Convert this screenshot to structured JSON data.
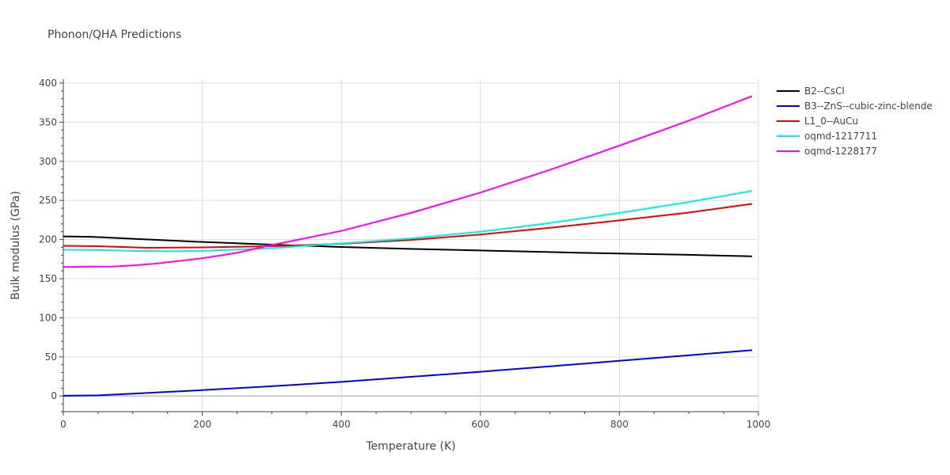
{
  "chart_data": {
    "type": "line",
    "title": "Phonon/QHA Predictions",
    "xlabel": "Temperature (K)",
    "ylabel": "Bulk modulus (GPa)",
    "xlim": [
      0,
      1000
    ],
    "ylim": [
      -20,
      405
    ],
    "x_ticks": [
      0,
      200,
      400,
      600,
      800,
      1000
    ],
    "y_ticks": [
      0,
      50,
      100,
      150,
      200,
      250,
      300,
      350,
      400
    ],
    "grid": true,
    "legend_position": "right",
    "series": [
      {
        "name": "B2--CsCl",
        "color": "#000000",
        "x": [
          0,
          40,
          100,
          200,
          300,
          400,
          500,
          600,
          700,
          740,
          800,
          900,
          990
        ],
        "y": [
          204,
          203.5,
          201,
          197,
          193.5,
          190.5,
          188,
          186,
          184,
          183.2,
          182.2,
          180.5,
          178.6
        ]
      },
      {
        "name": "B3--ZnS--cubic-zinc-blende",
        "color": "#0000ee",
        "x": [
          0,
          50,
          100,
          200,
          300,
          400,
          500,
          600,
          700,
          800,
          900,
          990
        ],
        "y": [
          0.3,
          0.8,
          3,
          7.5,
          12.5,
          18,
          24.5,
          31,
          38,
          45,
          52,
          58.5
        ]
      },
      {
        "name": "L1_0--AuCu",
        "color": "#ee0000",
        "x": [
          0,
          50,
          120,
          200,
          300,
          400,
          500,
          600,
          700,
          800,
          900,
          990
        ],
        "y": [
          192,
          191.5,
          189.5,
          190,
          191.5,
          194.5,
          199.5,
          206.5,
          215,
          224.5,
          234.5,
          245.5
        ]
      },
      {
        "name": "oqmd-1217711",
        "color": "#00eeee",
        "x": [
          0,
          50,
          100,
          150,
          200,
          300,
          400,
          500,
          600,
          700,
          800,
          900,
          990
        ],
        "y": [
          187,
          186.5,
          185.5,
          185,
          185.5,
          189,
          195,
          201.5,
          210,
          221,
          234,
          248,
          262
        ]
      },
      {
        "name": "oqmd-1228177",
        "color": "#ff00ff",
        "x": [
          0,
          30,
          70,
          100,
          130,
          150,
          200,
          250,
          300,
          400,
          500,
          600,
          700,
          800,
          900,
          990
        ],
        "y": [
          165,
          165.3,
          165.5,
          167,
          169,
          171,
          176,
          183,
          193,
          211,
          234,
          260,
          289,
          320,
          352,
          383
        ]
      }
    ]
  }
}
